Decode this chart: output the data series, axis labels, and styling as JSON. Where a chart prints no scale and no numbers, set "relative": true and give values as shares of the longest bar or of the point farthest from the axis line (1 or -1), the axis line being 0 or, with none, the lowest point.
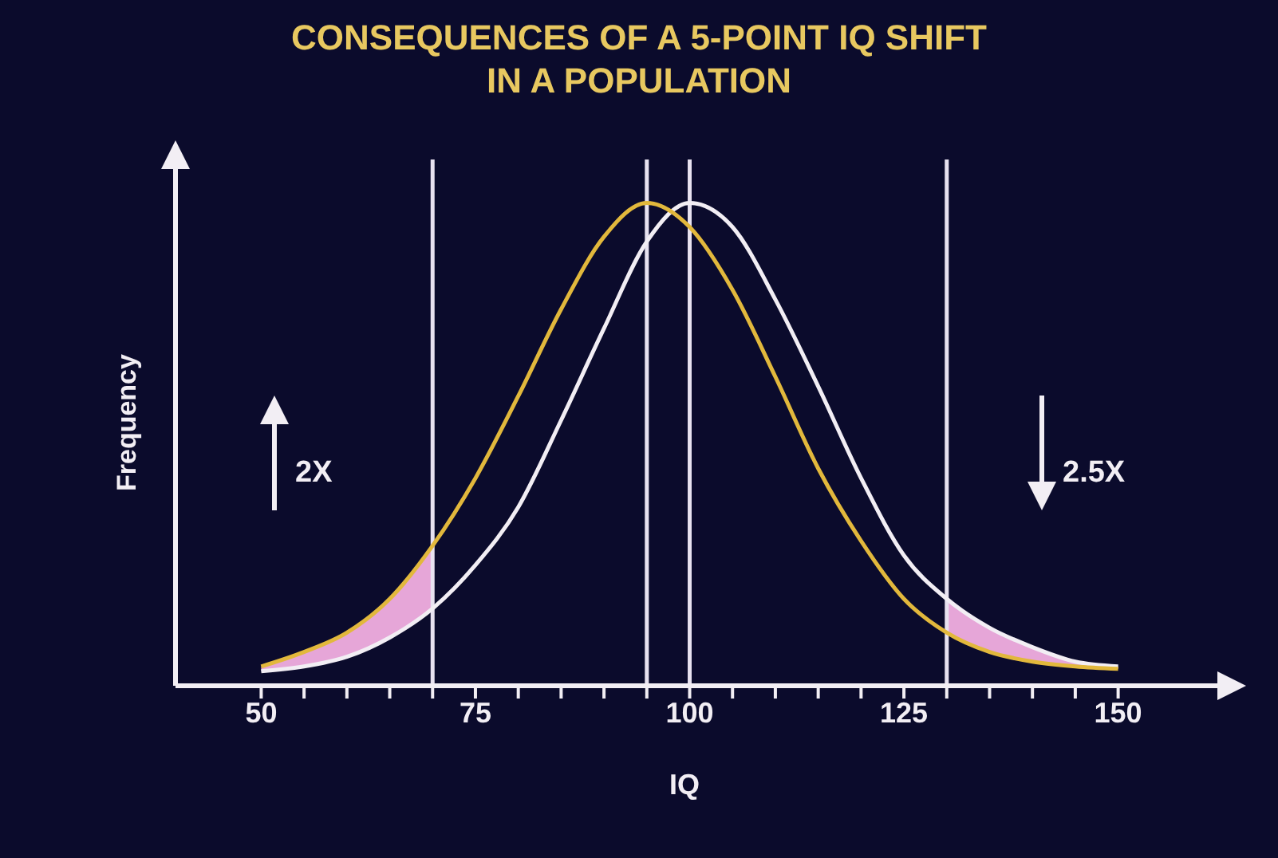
{
  "chart_data": {
    "type": "line",
    "title": "CONSEQUENCES OF A 5-POINT IQ SHIFT\nIN A POPULATION",
    "xlabel": "IQ",
    "ylabel": "Frequency",
    "relative": true,
    "x": [
      50,
      55,
      60,
      65,
      70,
      75,
      80,
      85,
      90,
      95,
      100,
      105,
      110,
      115,
      120,
      125,
      130,
      135,
      140,
      145,
      150
    ],
    "series": [
      {
        "color": "#f2eef4",
        "values": [
          0.03,
          0.04,
          0.06,
          0.1,
          0.16,
          0.25,
          0.37,
          0.55,
          0.74,
          0.92,
          1,
          0.95,
          0.8,
          0.62,
          0.43,
          0.27,
          0.18,
          0.12,
          0.08,
          0.05,
          0.04
        ],
        "lower": [
          0.03,
          0.04,
          0.06,
          0.1,
          0.16,
          null,
          null,
          null,
          null,
          null,
          null,
          null,
          null,
          null,
          null,
          null,
          0.11,
          0.07,
          0.05,
          0.04,
          0.035
        ],
        "upper": [
          0.04,
          0.07,
          0.11,
          0.18,
          0.29,
          null,
          null,
          null,
          null,
          null,
          null,
          null,
          null,
          null,
          null,
          null,
          0.18,
          0.12,
          0.08,
          0.05,
          0.04
        ]
      },
      {
        "color": "#e2b83c",
        "values": [
          0.04,
          0.07,
          0.11,
          0.18,
          0.29,
          0.43,
          0.6,
          0.78,
          0.93,
          1,
          0.95,
          0.82,
          0.64,
          0.45,
          0.3,
          0.18,
          0.11,
          0.07,
          0.05,
          0.04,
          0.035
        ]
      }
    ],
    "xlim": [
      40,
      164
    ],
    "xticks": [
      {
        "value": 50,
        "label": "50"
      },
      {
        "value": 55,
        "label": null
      },
      {
        "value": 60,
        "label": null
      },
      {
        "value": 65,
        "label": null
      },
      {
        "value": 70,
        "label": null
      },
      {
        "value": 75,
        "label": "75"
      },
      {
        "value": 80,
        "label": null
      },
      {
        "value": 85,
        "label": null
      },
      {
        "value": 90,
        "label": null
      },
      {
        "value": 95,
        "label": null
      },
      {
        "value": 100,
        "label": "100"
      },
      {
        "value": 105,
        "label": null
      },
      {
        "value": 110,
        "label": null
      },
      {
        "value": 115,
        "label": null
      },
      {
        "value": 120,
        "label": null
      },
      {
        "value": 125,
        "label": "125"
      },
      {
        "value": 130,
        "label": null
      },
      {
        "value": 135,
        "label": null
      },
      {
        "value": 140,
        "label": null
      },
      {
        "value": 145,
        "label": null
      },
      {
        "value": 150,
        "label": "150"
      }
    ],
    "ref_lines": [
      {
        "axis": "x",
        "value": 70,
        "color": "#e8e2f0"
      },
      {
        "axis": "x",
        "value": 95,
        "color": "#e8e2f0"
      },
      {
        "axis": "x",
        "value": 100,
        "color": "#e8e2f0"
      },
      {
        "axis": "x",
        "value": 130,
        "color": "#e8e2f0"
      }
    ],
    "annotations": [
      "2X",
      "2.5X"
    ]
  }
}
